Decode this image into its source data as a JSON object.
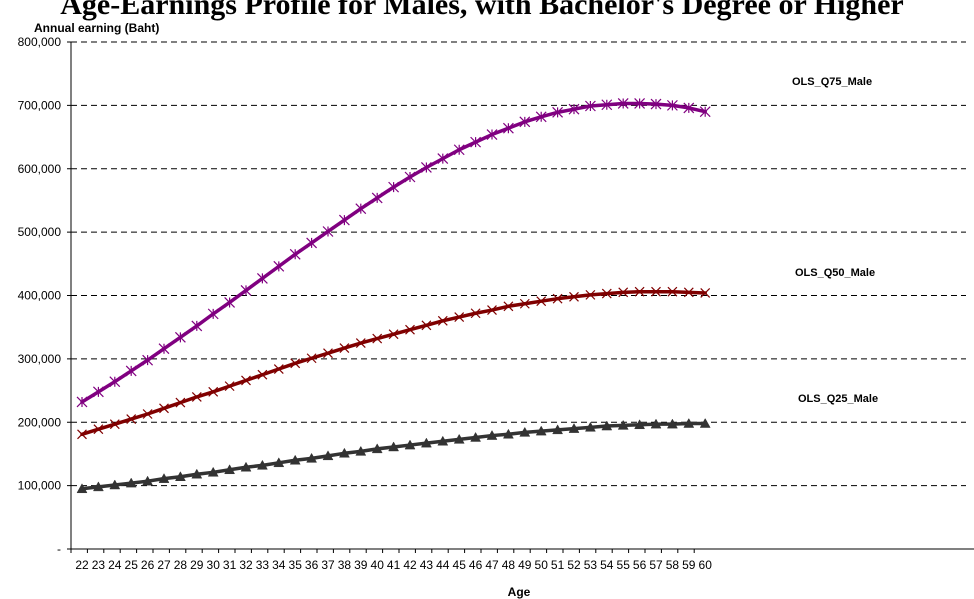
{
  "chart_data": {
    "type": "line",
    "title": "Age-Earnings Profile for Males, with Bachelor's Degree or Higher",
    "ylabel": "Annual earning (Baht)",
    "xlabel": "Age",
    "x": [
      22,
      23,
      24,
      25,
      26,
      27,
      28,
      29,
      30,
      31,
      32,
      33,
      34,
      35,
      36,
      37,
      38,
      39,
      40,
      41,
      42,
      43,
      44,
      45,
      46,
      47,
      48,
      49,
      50,
      51,
      52,
      53,
      54,
      55,
      56,
      57,
      58,
      59,
      60
    ],
    "x_tick_labels": [
      "22",
      "23",
      "24",
      "25",
      "26",
      "27",
      "28",
      "29",
      "30",
      "31",
      "32",
      "33",
      "34",
      "35",
      "36",
      "37",
      "38",
      "39",
      "40",
      "41",
      "42",
      "43",
      "44",
      "45",
      "46",
      "47",
      "48",
      "49",
      "50",
      "51",
      "52",
      "53",
      "54",
      "55",
      "56",
      "57",
      "58",
      "59",
      "60"
    ],
    "ylim": [
      0,
      800000
    ],
    "y_ticks": [
      0,
      100000,
      200000,
      300000,
      400000,
      500000,
      600000,
      700000,
      800000
    ],
    "y_tick_labels": [
      "-",
      "100,000",
      "200,000",
      "300,000",
      "400,000",
      "500,000",
      "600,000",
      "700,000",
      "800,000"
    ],
    "grid": "horizontal-dashed",
    "series": [
      {
        "name": "OLS_Q75_Male",
        "color": "#800080",
        "marker": "star",
        "values": [
          232000,
          248000,
          264000,
          281000,
          298000,
          316000,
          334000,
          352000,
          371000,
          389000,
          408000,
          427000,
          446000,
          465000,
          483000,
          501000,
          519000,
          537000,
          554000,
          571000,
          587000,
          602000,
          616000,
          630000,
          642000,
          654000,
          664000,
          674000,
          682000,
          689000,
          694000,
          699000,
          701000,
          703000,
          703000,
          702000,
          700000,
          696000,
          690000
        ]
      },
      {
        "name": "OLS_Q50_Male",
        "color": "#800000",
        "marker": "x",
        "values": [
          181000,
          189000,
          197000,
          205000,
          213000,
          222000,
          231000,
          240000,
          248000,
          257000,
          266000,
          275000,
          284000,
          293000,
          301000,
          309000,
          317000,
          325000,
          332000,
          339000,
          346000,
          353000,
          360000,
          366000,
          372000,
          377000,
          383000,
          387000,
          391000,
          395000,
          398000,
          401000,
          403000,
          405000,
          406000,
          406000,
          406000,
          405000,
          404000
        ]
      },
      {
        "name": "OLS_Q25_Male",
        "color": "#333333",
        "marker": "triangle",
        "values": [
          95000,
          98000,
          101000,
          104000,
          107000,
          111000,
          114000,
          118000,
          121000,
          125000,
          129000,
          132000,
          136000,
          140000,
          143000,
          147000,
          151000,
          154000,
          158000,
          161000,
          164000,
          167000,
          170000,
          173000,
          176000,
          179000,
          181000,
          184000,
          186000,
          188000,
          190000,
          192000,
          194000,
          195000,
          196000,
          197000,
          197000,
          198000,
          198000
        ]
      }
    ]
  }
}
